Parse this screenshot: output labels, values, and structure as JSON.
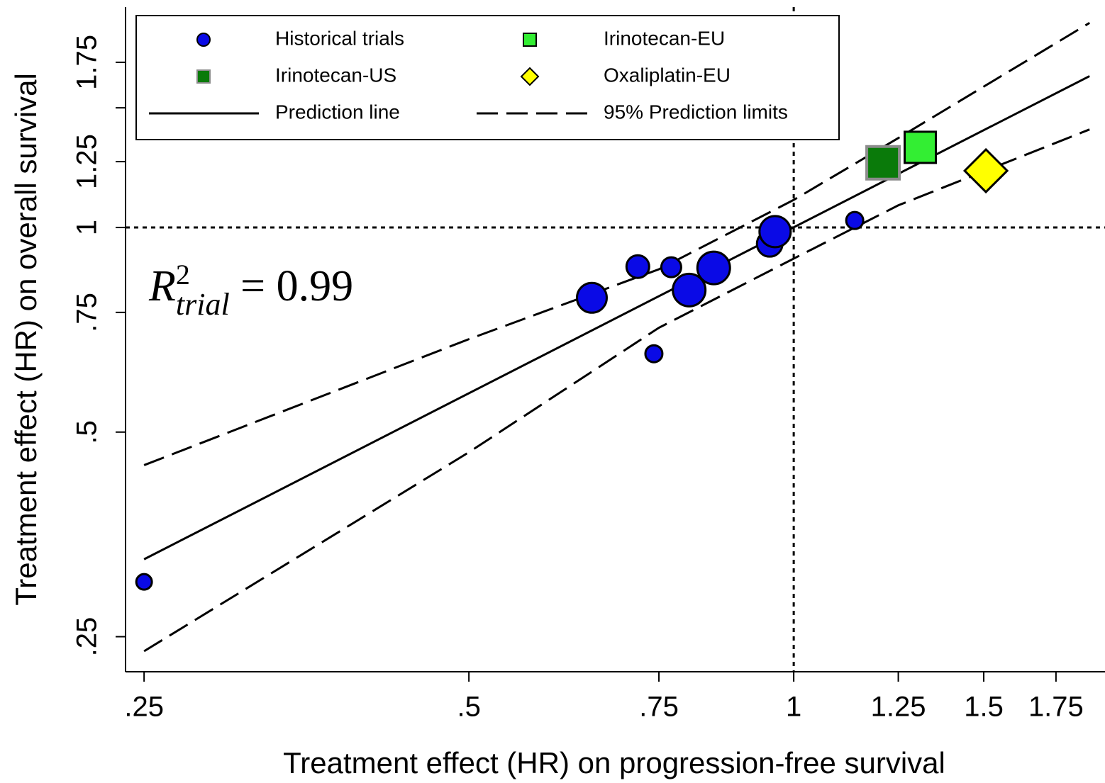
{
  "chart_data": {
    "type": "scatter",
    "x_label": "Treatment effect (HR) on progression-free survival",
    "y_label": "Treatment effect (HR) on overall survival",
    "xscale": "log",
    "yscale": "log",
    "xlim": [
      0.2403,
      1.943
    ],
    "ylim": [
      0.222,
      2.11
    ],
    "xticks": [
      {
        "value": 0.25,
        "label": ".25"
      },
      {
        "value": 0.5,
        "label": ".5"
      },
      {
        "value": 0.75,
        "label": ".75"
      },
      1,
      1.25,
      1.5,
      1.75
    ],
    "yticks": [
      {
        "value": 0.25,
        "label": ".25"
      },
      {
        "value": 0.5,
        "label": ".5"
      },
      {
        "value": 0.75,
        "label": ".75"
      },
      1,
      1.25,
      {
        "value": 1.5,
        "label": null
      },
      1.75
    ],
    "xline": 1,
    "yline": 1,
    "annotation": {
      "base": "R",
      "sup": "2",
      "sub": "trial",
      "text": " = 0.99"
    },
    "legend": "top-left",
    "series": [
      {
        "name": "Historical trials",
        "marker": "circle",
        "color": "#0a0ae6",
        "x": [
          0.25,
          0.65,
          0.717,
          0.742,
          0.77,
          0.8,
          0.843,
          0.95,
          0.961,
          1.139
        ],
        "values": [
          0.301,
          0.788,
          0.876,
          0.652,
          0.874,
          0.809,
          0.872,
          0.946,
          0.986,
          1.024
        ],
        "sizes": [
          11,
          21,
          16,
          12,
          14,
          23,
          23,
          18,
          22,
          12
        ]
      },
      {
        "name": "Irinotecan-EU",
        "marker": "square",
        "color": "#33ee33",
        "x": [
          1.31
        ],
        "values": [
          1.312
        ],
        "sizes": [
          22
        ]
      },
      {
        "name": "Irinotecan-US",
        "marker": "square",
        "color": "#0a7a0a",
        "stroke": "#8c8c8c",
        "x": [
          1.21
        ],
        "values": [
          1.245
        ],
        "sizes": [
          23
        ]
      },
      {
        "name": "Oxaliplatin-EU",
        "marker": "diamond",
        "color": "#ffff00",
        "x": [
          1.507
        ],
        "values": [
          1.212
        ],
        "sizes": [
          30
        ]
      },
      {
        "name": "Prediction line",
        "marker": "line",
        "color": "#000000",
        "x": [
          0.25,
          1.88
        ],
        "values": [
          0.325,
          1.67
        ]
      },
      {
        "name": "95% Prediction limits",
        "marker": "dashed",
        "color": "#000000",
        "x": [
          0.25,
          0.5,
          0.75,
          1,
          1.25,
          1.88
        ],
        "upper": [
          0.447,
          0.685,
          0.868,
          1.098,
          1.354,
          2.0
        ],
        "lower": [
          0.238,
          0.467,
          0.712,
          0.9,
          1.078,
          1.394
        ]
      }
    ]
  }
}
